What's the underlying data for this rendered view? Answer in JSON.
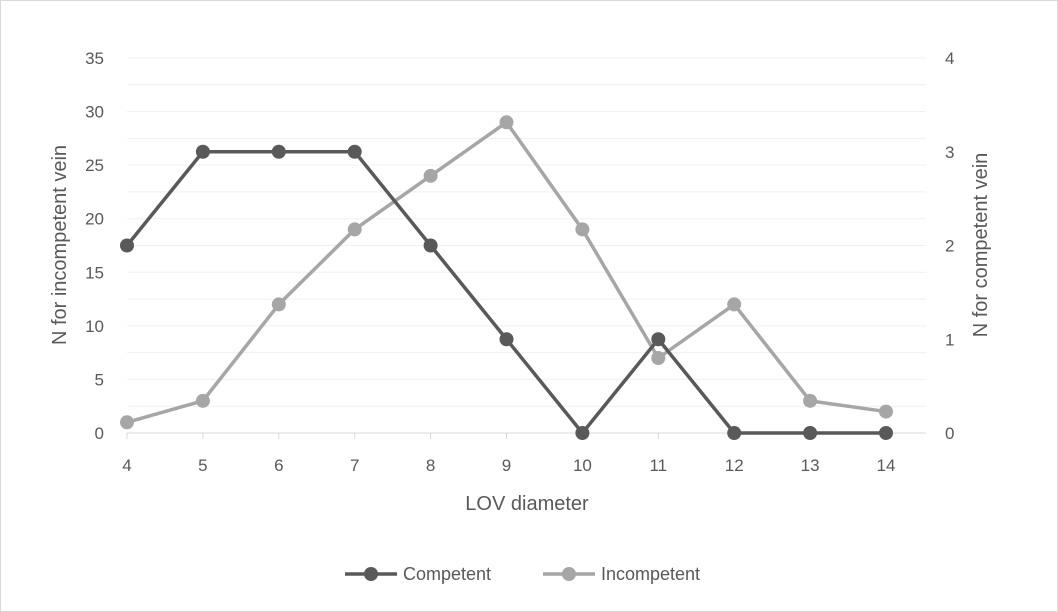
{
  "chart_data": {
    "type": "line",
    "x": [
      4,
      5,
      6,
      7,
      8,
      9,
      10,
      11,
      12,
      13,
      14
    ],
    "xlabel": "LOV diameter",
    "ylabel_left": "N for incompetent vein",
    "ylabel_right": "N for competent vein",
    "ylim_left": [
      0,
      35
    ],
    "ylim_right": [
      0,
      4
    ],
    "yticks_left": [
      0,
      5,
      10,
      15,
      20,
      25,
      30,
      35
    ],
    "yticks_right": [
      0,
      1,
      2,
      3,
      4
    ],
    "grid": true,
    "legend_position": "bottom",
    "series": [
      {
        "name": "Competent",
        "axis": "right",
        "color": "#595959",
        "values": [
          2,
          3,
          3,
          3,
          2,
          1,
          0,
          1,
          0,
          0,
          0
        ]
      },
      {
        "name": "Incompetent",
        "axis": "left",
        "color": "#a6a6a6",
        "values": [
          1,
          3,
          12,
          19,
          24,
          29,
          19,
          7,
          12,
          3,
          2
        ]
      }
    ]
  }
}
